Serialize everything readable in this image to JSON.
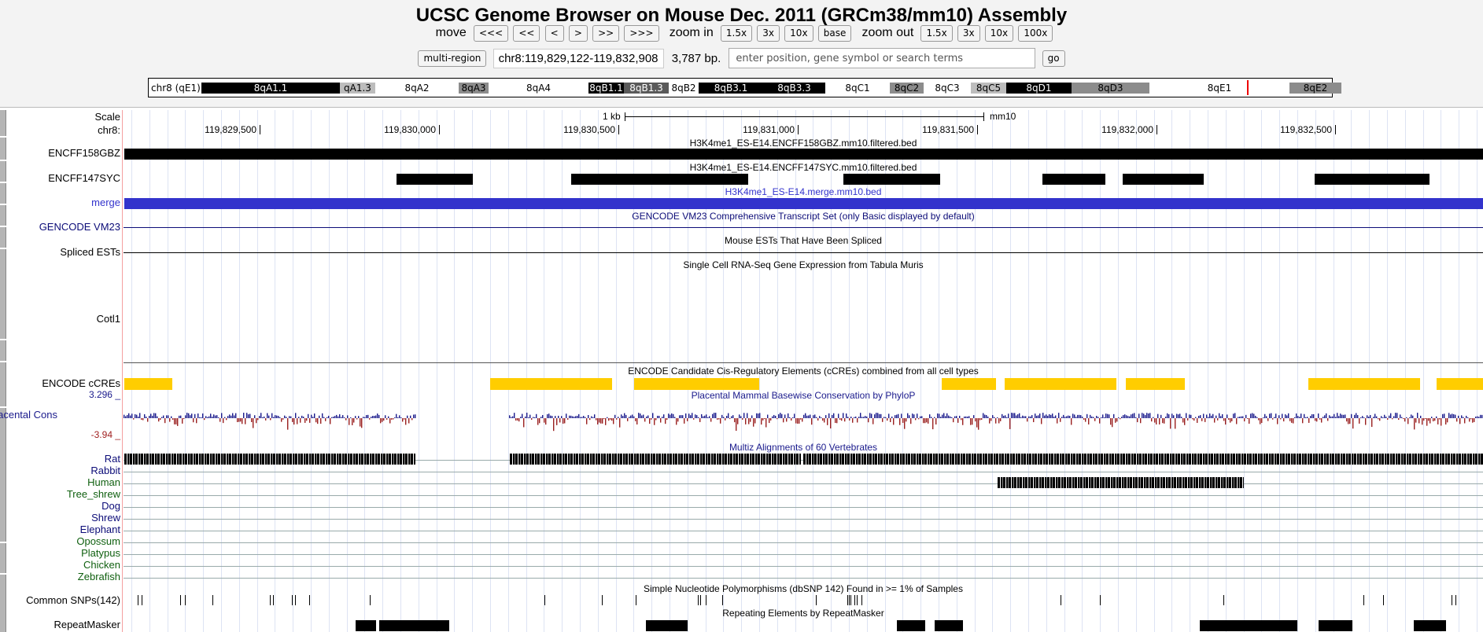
{
  "header": {
    "title": "UCSC Genome Browser on Mouse Dec. 2011 (GRCm38/mm10) Assembly",
    "move_label": "move",
    "move_buttons": [
      "<<<",
      "<<",
      "<",
      ">",
      ">>",
      ">>>"
    ],
    "zoom_in_label": "zoom in",
    "zoom_in_buttons": [
      "1.5x",
      "3x",
      "10x",
      "base"
    ],
    "zoom_out_label": "zoom out",
    "zoom_out_buttons": [
      "1.5x",
      "3x",
      "10x",
      "100x"
    ],
    "multi_region_label": "multi-region",
    "position": "chr8:119,829,122-119,832,908",
    "size": "3,787 bp.",
    "search_placeholder": "enter position, gene symbol or search terms",
    "go_label": "go"
  },
  "ideogram": {
    "label": "chr8 (qE1)",
    "bands": [
      {
        "name": "8qA1.1",
        "color": "#000000",
        "text": "#ffffff"
      },
      {
        "name": "qA1.3",
        "color": "#bdbdbd",
        "text": "#000000"
      },
      {
        "name": "8qA2",
        "color": "#ffffff",
        "text": "#000000"
      },
      {
        "name": "8qA3",
        "color": "#8c8c8c",
        "text": "#000000"
      },
      {
        "name": "8qA4",
        "color": "#ffffff",
        "text": "#000000"
      },
      {
        "name": "8qB1.1",
        "color": "#000000",
        "text": "#ffffff"
      },
      {
        "name": "8qB1.3",
        "color": "#5a5a5a",
        "text": "#ffffff"
      },
      {
        "name": "8qB2",
        "color": "#ffffff",
        "text": "#000000"
      },
      {
        "name": "8qB3.1",
        "color": "#000000",
        "text": "#ffffff"
      },
      {
        "name": "8qB3.3",
        "color": "#000000",
        "text": "#ffffff"
      },
      {
        "name": "8qC1",
        "color": "#ffffff",
        "text": "#000000"
      },
      {
        "name": "8qC2",
        "color": "#8c8c8c",
        "text": "#000000"
      },
      {
        "name": "8qC3",
        "color": "#ffffff",
        "text": "#000000"
      },
      {
        "name": "8qC5",
        "color": "#bdbdbd",
        "text": "#000000"
      },
      {
        "name": "8qD1",
        "color": "#000000",
        "text": "#ffffff"
      },
      {
        "name": "8qD3",
        "color": "#8c8c8c",
        "text": "#000000"
      },
      {
        "name": "8qE1",
        "color": "#ffffff",
        "text": "#000000"
      },
      {
        "name": "8qE2",
        "color": "#8c8c8c",
        "text": "#000000"
      }
    ]
  },
  "scale": {
    "label": "Scale",
    "chrom_label": "chr8:",
    "bar_label": "1 kb",
    "assembly": "mm10",
    "ticks": [
      "119,829,500",
      "119,830,000",
      "119,830,500",
      "119,831,000",
      "119,831,500",
      "119,832,000",
      "119,832,500"
    ]
  },
  "tracks": {
    "encff158gbz": {
      "label": "ENCFF158GBZ",
      "title": "H3K4me1_ES-E14.ENCFF158GBZ.mm10.filtered.bed"
    },
    "encff147syc": {
      "label": "ENCFF147SYC",
      "title": "H3K4me1_ES-E14.ENCFF147SYC.mm10.filtered.bed"
    },
    "merge": {
      "label": "merge",
      "title": "H3K4me1_ES-E14.merge.mm10.bed",
      "color": "#3333cc"
    },
    "gencode": {
      "label": "GENCODE VM23",
      "title": "GENCODE VM23 Comprehensive Transcript Set (only Basic displayed by default)",
      "color": "#0c0c78"
    },
    "est": {
      "label": "Spliced ESTs",
      "title": "Mouse ESTs That Have Been Spliced"
    },
    "scrna": {
      "label": "Cotl1",
      "title": "Single Cell RNA-Seq Gene Expression from Tabula Muris"
    },
    "ccre": {
      "label": "ENCODE cCREs",
      "title": "ENCODE Candidate Cis-Regulatory Elements (cCREs) combined from all cell types",
      "color": "#ffcd00"
    },
    "phylop": {
      "label": "Placental Cons",
      "title": "Placental Mammal Basewise Conservation by PhyloP",
      "max": "3.296 _",
      "min": "-3.94 _",
      "color": "#1a1a8c"
    },
    "multiz": {
      "title": "Multiz Alignments of 60 Vertebrates",
      "species": [
        {
          "name": "Rat",
          "color": "#0c0c78"
        },
        {
          "name": "Rabbit",
          "color": "#0c0c78"
        },
        {
          "name": "Human",
          "color": "#106010"
        },
        {
          "name": "Tree_shrew",
          "color": "#106010"
        },
        {
          "name": "Dog",
          "color": "#0c0c78"
        },
        {
          "name": "Shrew",
          "color": "#0c0c78"
        },
        {
          "name": "Elephant",
          "color": "#0c0c78"
        },
        {
          "name": "Opossum",
          "color": "#106010"
        },
        {
          "name": "Platypus",
          "color": "#106010"
        },
        {
          "name": "Chicken",
          "color": "#106010"
        },
        {
          "name": "Zebrafish",
          "color": "#106010"
        }
      ]
    },
    "snp": {
      "label": "Common SNPs(142)",
      "title": "Simple Nucleotide Polymorphisms (dbSNP 142) Found in >= 1% of Samples"
    },
    "rmsk": {
      "label": "RepeatMasker",
      "title": "Repeating Elements by RepeatMasker"
    }
  }
}
